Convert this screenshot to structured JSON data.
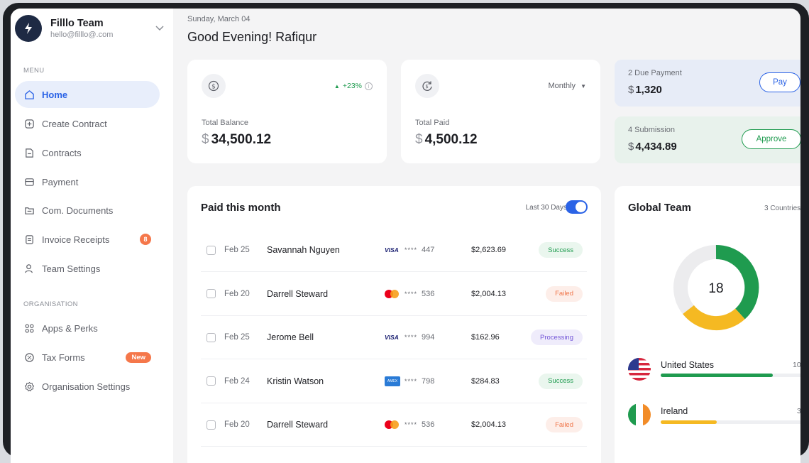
{
  "team": {
    "name": "Filllo Team",
    "email": "hello@filllo@.com",
    "logo_letter": "⚡"
  },
  "sidebar": {
    "menu_label": "MENU",
    "org_label": "ORGANISATION",
    "menu_items": [
      {
        "label": "Home",
        "icon": "home-icon",
        "active": true
      },
      {
        "label": "Create Contract",
        "icon": "plus-square-icon"
      },
      {
        "label": "Contracts",
        "icon": "document-icon"
      },
      {
        "label": "Payment",
        "icon": "credit-card-icon"
      },
      {
        "label": "Com. Documents",
        "icon": "folder-icon"
      },
      {
        "label": "Invoice Receipts",
        "icon": "receipt-icon",
        "badge": "8"
      },
      {
        "label": "Team Settings",
        "icon": "users-icon"
      }
    ],
    "org_items": [
      {
        "label": "Apps & Perks",
        "icon": "apps-grid-icon"
      },
      {
        "label": "Tax Forms",
        "icon": "percent-icon",
        "badge": "New"
      },
      {
        "label": "Organisation Settings",
        "icon": "settings-icon"
      }
    ]
  },
  "header": {
    "date": "Sunday, March 04",
    "greeting": "Good Evening! Rafiqur"
  },
  "balance": {
    "label": "Total Balance",
    "currency": "$",
    "amount": "34,500.12",
    "growth": "+23%"
  },
  "paid": {
    "label": "Total Paid",
    "currency": "$",
    "amount": "4,500.12",
    "period": "Monthly"
  },
  "due": {
    "label": "2 Due Payment",
    "currency": "$",
    "amount": "1,320",
    "button": "Pay"
  },
  "submission": {
    "label": "4 Submission",
    "currency": "$",
    "amount": "4,434.89",
    "button": "Approve"
  },
  "table": {
    "title": "Paid this month",
    "range": "Last 30 Days",
    "rows": [
      {
        "date": "Feb 25",
        "name": "Savannah Nguyen",
        "card": "visa",
        "last4": "447",
        "amount": "$2,623.69",
        "status": "Success"
      },
      {
        "date": "Feb 20",
        "name": "Darrell Steward",
        "card": "mastercard",
        "last4": "536",
        "amount": "$2,004.13",
        "status": "Failed"
      },
      {
        "date": "Feb 25",
        "name": "Jerome Bell",
        "card": "visa",
        "last4": "994",
        "amount": "$162.96",
        "status": "Processing"
      },
      {
        "date": "Feb 24",
        "name": "Kristin Watson",
        "card": "amex",
        "last4": "798",
        "amount": "$284.83",
        "status": "Success"
      },
      {
        "date": "Feb 20",
        "name": "Darrell Steward",
        "card": "mastercard",
        "last4": "536",
        "amount": "$2,004.13",
        "status": "Failed"
      }
    ],
    "masked": "****",
    "visa_text": "VISA",
    "amex_text": "AMEX"
  },
  "global_team": {
    "title": "Global Team",
    "countries_label": "3 Countries",
    "total": "18",
    "countries": [
      {
        "name": "United States",
        "count": "10",
        "fraction": 0.94,
        "color": "#1f9b4f"
      },
      {
        "name": "Ireland",
        "count": "3",
        "fraction": 0.47,
        "color": "#f5b922"
      }
    ]
  },
  "colors": {
    "accent": "#2b63e6",
    "success": "#1f9b4f",
    "warning": "#f5b922",
    "danger": "#f0764a"
  }
}
